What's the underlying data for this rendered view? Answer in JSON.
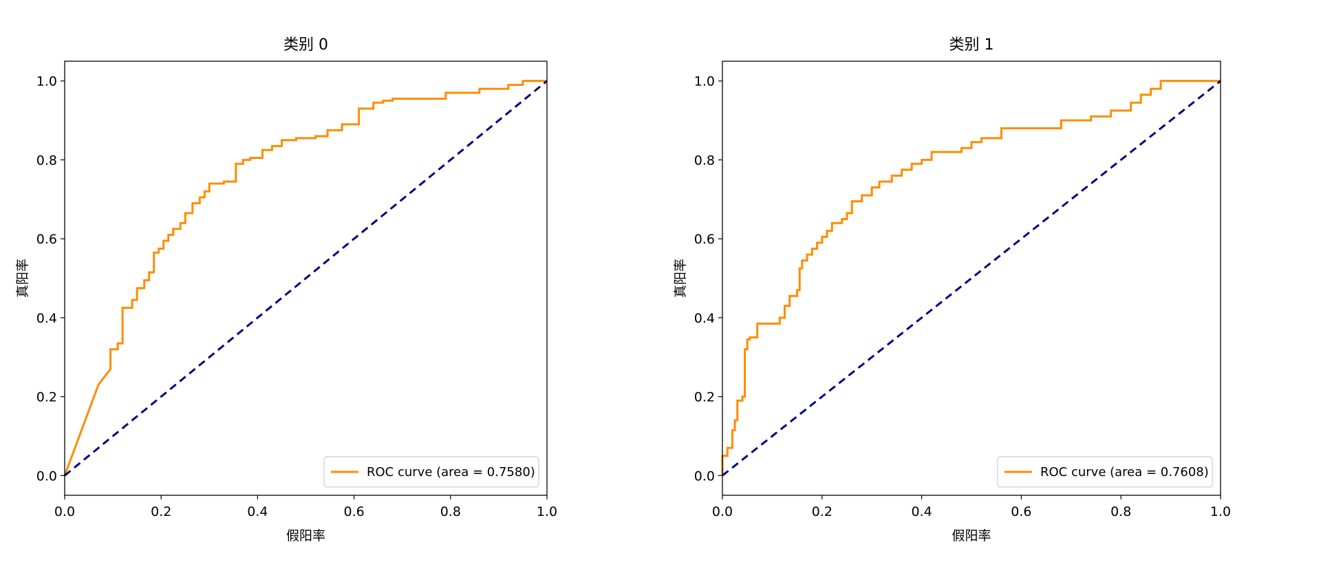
{
  "chart_data": [
    {
      "type": "line",
      "title": "类别 0",
      "xlabel": "假阳率",
      "ylabel": "真阳率",
      "xlim": [
        0.0,
        1.0
      ],
      "ylim": [
        -0.05,
        1.05
      ],
      "xticks": [
        "0.0",
        "0.2",
        "0.4",
        "0.6",
        "0.8",
        "1.0"
      ],
      "yticks": [
        "0.0",
        "0.2",
        "0.4",
        "0.6",
        "0.8",
        "1.0"
      ],
      "grid": false,
      "legend_position": "lower right",
      "series": [
        {
          "name": "ROC curve (area = 0.7580)",
          "color": "#ff8c00",
          "style": "solid",
          "x": [
            0,
            0.07,
            0.095,
            0.095,
            0.11,
            0.11,
            0.12,
            0.12,
            0.14,
            0.14,
            0.15,
            0.15,
            0.165,
            0.165,
            0.175,
            0.175,
            0.185,
            0.185,
            0.195,
            0.195,
            0.205,
            0.205,
            0.215,
            0.215,
            0.225,
            0.225,
            0.24,
            0.24,
            0.25,
            0.25,
            0.265,
            0.265,
            0.28,
            0.28,
            0.29,
            0.29,
            0.3,
            0.3,
            0.33,
            0.33,
            0.355,
            0.355,
            0.37,
            0.37,
            0.385,
            0.385,
            0.41,
            0.41,
            0.43,
            0.43,
            0.45,
            0.45,
            0.48,
            0.48,
            0.52,
            0.52,
            0.545,
            0.545,
            0.575,
            0.575,
            0.61,
            0.61,
            0.64,
            0.64,
            0.66,
            0.66,
            0.68,
            0.68,
            0.79,
            0.79,
            0.86,
            0.86,
            0.92,
            0.92,
            0.95,
            0.95,
            1.0
          ],
          "y": [
            0,
            0.23,
            0.27,
            0.32,
            0.32,
            0.335,
            0.335,
            0.425,
            0.425,
            0.445,
            0.445,
            0.475,
            0.475,
            0.495,
            0.495,
            0.515,
            0.515,
            0.565,
            0.565,
            0.575,
            0.575,
            0.595,
            0.595,
            0.61,
            0.61,
            0.625,
            0.625,
            0.64,
            0.64,
            0.665,
            0.665,
            0.69,
            0.69,
            0.705,
            0.705,
            0.72,
            0.72,
            0.74,
            0.74,
            0.745,
            0.745,
            0.79,
            0.79,
            0.8,
            0.8,
            0.805,
            0.805,
            0.825,
            0.825,
            0.835,
            0.835,
            0.85,
            0.85,
            0.855,
            0.855,
            0.86,
            0.86,
            0.875,
            0.875,
            0.89,
            0.89,
            0.93,
            0.93,
            0.945,
            0.945,
            0.95,
            0.95,
            0.955,
            0.955,
            0.97,
            0.97,
            0.98,
            0.98,
            0.99,
            0.99,
            1.0,
            1.0
          ]
        },
        {
          "color": "#000080",
          "style": "dashed",
          "x": [
            0,
            1
          ],
          "y": [
            0,
            1
          ]
        }
      ]
    },
    {
      "type": "line",
      "title": "类别 1",
      "xlabel": "假阳率",
      "ylabel": "真阳率",
      "xlim": [
        0.0,
        1.0
      ],
      "ylim": [
        -0.05,
        1.05
      ],
      "xticks": [
        "0.0",
        "0.2",
        "0.4",
        "0.6",
        "0.8",
        "1.0"
      ],
      "yticks": [
        "0.0",
        "0.2",
        "0.4",
        "0.6",
        "0.8",
        "1.0"
      ],
      "grid": false,
      "legend_position": "lower right",
      "series": [
        {
          "name": "ROC curve (area = 0.7608)",
          "color": "#ff8c00",
          "style": "solid",
          "x": [
            0,
            0,
            0.01,
            0.01,
            0.02,
            0.02,
            0.025,
            0.025,
            0.03,
            0.03,
            0.04,
            0.04,
            0.045,
            0.045,
            0.05,
            0.05,
            0.055,
            0.055,
            0.07,
            0.07,
            0.115,
            0.115,
            0.125,
            0.125,
            0.135,
            0.135,
            0.15,
            0.15,
            0.155,
            0.155,
            0.16,
            0.16,
            0.17,
            0.17,
            0.18,
            0.18,
            0.19,
            0.19,
            0.2,
            0.2,
            0.21,
            0.21,
            0.22,
            0.22,
            0.24,
            0.24,
            0.25,
            0.25,
            0.26,
            0.26,
            0.28,
            0.28,
            0.3,
            0.3,
            0.315,
            0.315,
            0.34,
            0.34,
            0.36,
            0.36,
            0.38,
            0.38,
            0.4,
            0.4,
            0.42,
            0.42,
            0.48,
            0.48,
            0.5,
            0.5,
            0.52,
            0.52,
            0.56,
            0.56,
            0.68,
            0.68,
            0.74,
            0.74,
            0.78,
            0.78,
            0.82,
            0.82,
            0.84,
            0.84,
            0.86,
            0.86,
            0.88,
            0.88,
            1.0
          ],
          "y": [
            0,
            0.05,
            0.05,
            0.07,
            0.07,
            0.115,
            0.115,
            0.14,
            0.14,
            0.19,
            0.19,
            0.2,
            0.2,
            0.32,
            0.32,
            0.345,
            0.345,
            0.35,
            0.35,
            0.385,
            0.385,
            0.4,
            0.4,
            0.43,
            0.43,
            0.455,
            0.455,
            0.47,
            0.47,
            0.525,
            0.525,
            0.545,
            0.545,
            0.56,
            0.56,
            0.575,
            0.575,
            0.59,
            0.59,
            0.605,
            0.605,
            0.62,
            0.62,
            0.64,
            0.64,
            0.65,
            0.65,
            0.665,
            0.665,
            0.695,
            0.695,
            0.71,
            0.71,
            0.73,
            0.73,
            0.745,
            0.745,
            0.76,
            0.76,
            0.775,
            0.775,
            0.79,
            0.79,
            0.8,
            0.8,
            0.82,
            0.82,
            0.83,
            0.83,
            0.845,
            0.845,
            0.855,
            0.855,
            0.88,
            0.88,
            0.9,
            0.9,
            0.91,
            0.91,
            0.925,
            0.925,
            0.945,
            0.945,
            0.965,
            0.965,
            0.98,
            0.98,
            1.0,
            1.0
          ]
        },
        {
          "color": "#000080",
          "style": "dashed",
          "x": [
            0,
            1
          ],
          "y": [
            0,
            1
          ]
        }
      ]
    }
  ]
}
